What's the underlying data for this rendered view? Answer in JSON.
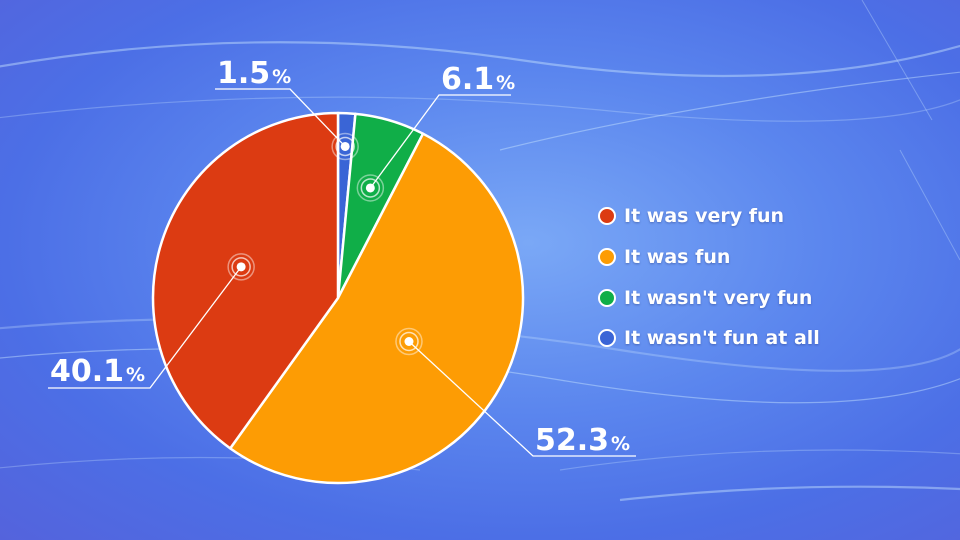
{
  "chart_data": {
    "type": "pie",
    "slices": [
      {
        "label": "It was very fun",
        "value": 40.1,
        "display": "40.1",
        "color": "#dc3b12"
      },
      {
        "label": "It was fun",
        "value": 52.3,
        "display": "52.3",
        "color": "#fd9c04"
      },
      {
        "label": "It wasn't very fun",
        "value": 6.1,
        "display": "6.1",
        "color": "#10ae48"
      },
      {
        "label": "It wasn't fun at all",
        "value": 1.5,
        "display": "1.5",
        "color": "#3a65d6"
      }
    ],
    "unit": "%",
    "legend_position": "right"
  }
}
